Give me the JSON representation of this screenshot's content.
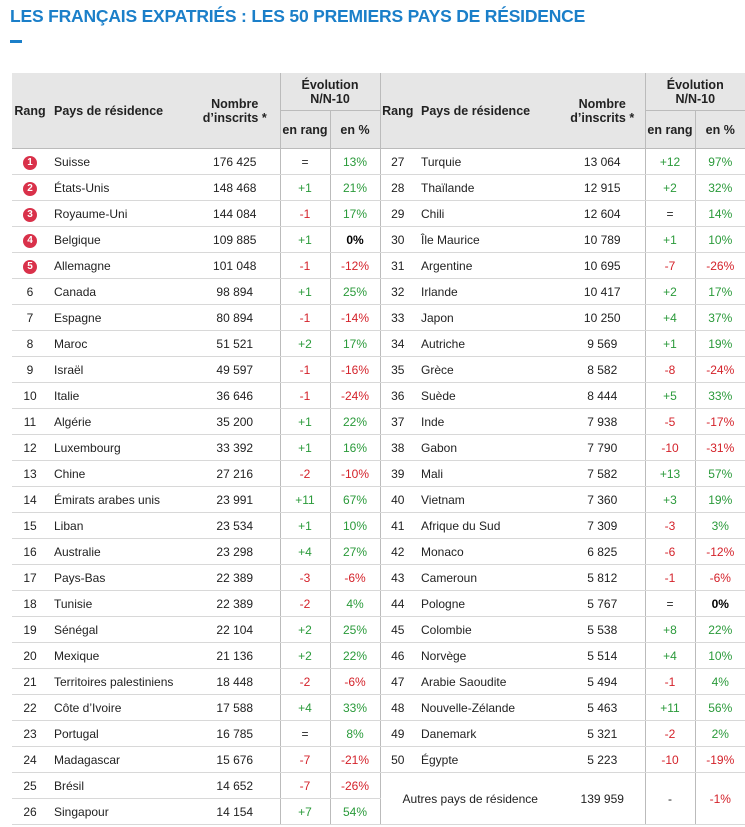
{
  "title": "LES FRANÇAIS EXPATRIÉS : LES 50 PREMIERS PAYS DE RÉSIDENCE",
  "header": {
    "rang": "Rang",
    "pays": "Pays de résidence",
    "nombre": "Nombre d’inscrits *",
    "evolution": "Évolution N/N-10",
    "en_rang": "en rang",
    "en_pct": "en %"
  },
  "rows": [
    [
      1,
      "Suisse",
      "176 425",
      "=",
      "13%"
    ],
    [
      2,
      "États-Unis",
      "148 468",
      "+1",
      "21%"
    ],
    [
      3,
      "Royaume-Uni",
      "144 084",
      "-1",
      "17%"
    ],
    [
      4,
      "Belgique",
      "109 885",
      "+1",
      "0%"
    ],
    [
      5,
      "Allemagne",
      "101 048",
      "-1",
      "-12%"
    ],
    [
      6,
      "Canada",
      "98 894",
      "+1",
      "25%"
    ],
    [
      7,
      "Espagne",
      "80 894",
      "-1",
      "-14%"
    ],
    [
      8,
      "Maroc",
      "51 521",
      "+2",
      "17%"
    ],
    [
      9,
      "Israël",
      "49 597",
      "-1",
      "-16%"
    ],
    [
      10,
      "Italie",
      "36 646",
      "-1",
      "-24%"
    ],
    [
      11,
      "Algérie",
      "35 200",
      "+1",
      "22%"
    ],
    [
      12,
      "Luxembourg",
      "33 392",
      "+1",
      "16%"
    ],
    [
      13,
      "Chine",
      "27 216",
      "-2",
      "-10%"
    ],
    [
      14,
      "Émirats arabes unis",
      "23 991",
      "+11",
      "67%"
    ],
    [
      15,
      "Liban",
      "23 534",
      "+1",
      "10%"
    ],
    [
      16,
      "Australie",
      "23 298",
      "+4",
      "27%"
    ],
    [
      17,
      "Pays-Bas",
      "22 389",
      "-3",
      "-6%"
    ],
    [
      18,
      "Tunisie",
      "22 389",
      "-2",
      "4%"
    ],
    [
      19,
      "Sénégal",
      "22 104",
      "+2",
      "25%"
    ],
    [
      20,
      "Mexique",
      "21 136",
      "+2",
      "22%"
    ],
    [
      21,
      "Territoires palestiniens",
      "18 448",
      "-2",
      "-6%"
    ],
    [
      22,
      "Côte d’Ivoire",
      "17 588",
      "+4",
      "33%"
    ],
    [
      23,
      "Portugal",
      "16 785",
      "=",
      "8%"
    ],
    [
      24,
      "Madagascar",
      "15 676",
      "-7",
      "-21%"
    ],
    [
      25,
      "Brésil",
      "14 652",
      "-7",
      "-26%"
    ],
    [
      26,
      "Singapour",
      "14 154",
      "+7",
      "54%"
    ],
    [
      27,
      "Turquie",
      "13 064",
      "+12",
      "97%"
    ],
    [
      28,
      "Thaïlande",
      "12 915",
      "+2",
      "32%"
    ],
    [
      29,
      "Chili",
      "12 604",
      "=",
      "14%"
    ],
    [
      30,
      "Île Maurice",
      "10 789",
      "+1",
      "10%"
    ],
    [
      31,
      "Argentine",
      "10 695",
      "-7",
      "-26%"
    ],
    [
      32,
      "Irlande",
      "10 417",
      "+2",
      "17%"
    ],
    [
      33,
      "Japon",
      "10 250",
      "+4",
      "37%"
    ],
    [
      34,
      "Autriche",
      "9 569",
      "+1",
      "19%"
    ],
    [
      35,
      "Grèce",
      "8 582",
      "-8",
      "-24%"
    ],
    [
      36,
      "Suède",
      "8 444",
      "+5",
      "33%"
    ],
    [
      37,
      "Inde",
      "7 938",
      "-5",
      "-17%"
    ],
    [
      38,
      "Gabon",
      "7 790",
      "-10",
      "-31%"
    ],
    [
      39,
      "Mali",
      "7 582",
      "+13",
      "57%"
    ],
    [
      40,
      "Vietnam",
      "7 360",
      "+3",
      "19%"
    ],
    [
      41,
      "Afrique du Sud",
      "7 309",
      "-3",
      "3%"
    ],
    [
      42,
      "Monaco",
      "6 825",
      "-6",
      "-12%"
    ],
    [
      43,
      "Cameroun",
      "5 812",
      "-1",
      "-6%"
    ],
    [
      44,
      "Pologne",
      "5 767",
      "=",
      "0%"
    ],
    [
      45,
      "Colombie",
      "5 538",
      "+8",
      "22%"
    ],
    [
      46,
      "Norvège",
      "5 514",
      "+4",
      "10%"
    ],
    [
      47,
      "Arabie Saoudite",
      "5 494",
      "-1",
      "4%"
    ],
    [
      48,
      "Nouvelle-Zélande",
      "5 463",
      "+11",
      "56%"
    ],
    [
      49,
      "Danemark",
      "5 321",
      "-2",
      "2%"
    ],
    [
      50,
      "Égypte",
      "5 223",
      "-10",
      "-19%"
    ]
  ],
  "autres": {
    "label": "Autres pays de résidence",
    "nombre": "139 959",
    "rang": "-",
    "pct": "-1%"
  }
}
